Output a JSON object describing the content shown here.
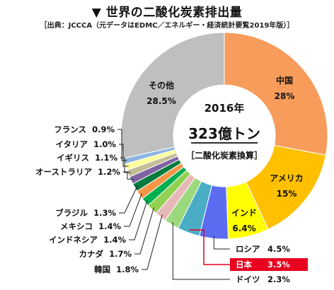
{
  "header": {
    "title": "▼ 世界の二酸化炭素排出量",
    "source": "［出典：JCCCA（元データはEDMC／エネルギー・経済統計要覧2019年版）］"
  },
  "center": {
    "year": "2016年",
    "total": "323億トン",
    "unit_note": "［二酸化炭素換算］"
  },
  "chart_data": {
    "type": "pie",
    "title": "世界の二酸化炭素排出量",
    "total_label": "323億トン",
    "unit": "%",
    "slices": [
      {
        "name": "中国",
        "value": 28,
        "label": "28%",
        "color": "#F79C5B"
      },
      {
        "name": "アメリカ",
        "value": 15,
        "label": "15%",
        "color": "#FFC000"
      },
      {
        "name": "インド",
        "value": 6.4,
        "label": "6.4%",
        "color": "#FFFF00"
      },
      {
        "name": "ロシア",
        "value": 4.5,
        "label": "4.5%",
        "color": "#5C6CF0"
      },
      {
        "name": "日本",
        "value": 3.5,
        "label": "3.5%",
        "color": "#4BACC6",
        "highlight": true
      },
      {
        "name": "ドイツ",
        "value": 2.3,
        "label": "2.3%",
        "color": "#9BD97C"
      },
      {
        "name": "韓国",
        "value": 1.8,
        "label": "1.8%",
        "color": "#E6B9B8"
      },
      {
        "name": "カナダ",
        "value": 1.7,
        "label": "1.7%",
        "color": "#92D050"
      },
      {
        "name": "インドネシア",
        "value": 1.4,
        "label": "1.4%",
        "color": "#00B050"
      },
      {
        "name": "メキシコ",
        "value": 1.4,
        "label": "1.4%",
        "color": "#F79646"
      },
      {
        "name": "ブラジル",
        "value": 1.3,
        "label": "1.3%",
        "color": "#007A3D"
      },
      {
        "name": "オーストラリア",
        "value": 1.2,
        "label": "1.2%",
        "color": "#8064A2"
      },
      {
        "name": "イギリス",
        "value": 1.1,
        "label": "1.1%",
        "color": "#C4BD97"
      },
      {
        "name": "イタリア",
        "value": 1.0,
        "label": "1.0%",
        "color": "#FFFF99"
      },
      {
        "name": "フランス",
        "value": 0.9,
        "label": "0.9%",
        "color": "#8DB4E2"
      },
      {
        "name": "その他",
        "value": 28.5,
        "label": "28.5%",
        "color": "#BFBFBF"
      }
    ]
  }
}
